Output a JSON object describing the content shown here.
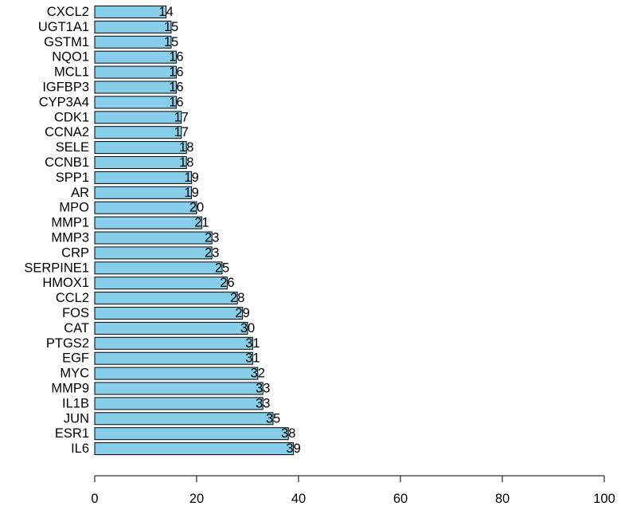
{
  "chart_data": {
    "type": "bar",
    "orientation": "horizontal",
    "categories": [
      "CXCL2",
      "UGT1A1",
      "GSTM1",
      "NQO1",
      "MCL1",
      "IGFBP3",
      "CYP3A4",
      "CDK1",
      "CCNA2",
      "SELE",
      "CCNB1",
      "SPP1",
      "AR",
      "MPO",
      "MMP1",
      "MMP3",
      "CRP",
      "SERPINE1",
      "HMOX1",
      "CCL2",
      "FOS",
      "CAT",
      "PTGS2",
      "EGF",
      "MYC",
      "MMP9",
      "IL1B",
      "JUN",
      "ESR1",
      "IL6"
    ],
    "values": [
      14,
      15,
      15,
      16,
      16,
      16,
      16,
      17,
      17,
      18,
      18,
      19,
      19,
      20,
      21,
      23,
      23,
      25,
      26,
      28,
      29,
      30,
      31,
      31,
      32,
      33,
      33,
      35,
      38,
      39
    ],
    "title": "",
    "xlabel": "",
    "ylabel": "",
    "xlim": [
      0,
      100
    ],
    "xticks": [
      0,
      20,
      40,
      60,
      80,
      100
    ],
    "bar_color": "#87CEEB",
    "grid": false
  }
}
